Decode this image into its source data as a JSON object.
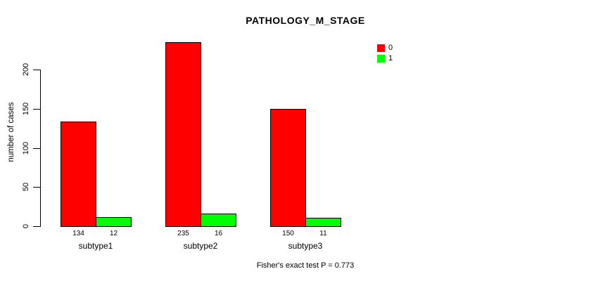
{
  "chart_data": {
    "type": "bar",
    "title": "PATHOLOGY_M_STAGE",
    "xlabel": "",
    "ylabel": "number of cases",
    "categories": [
      "subtype1",
      "subtype2",
      "subtype3"
    ],
    "series": [
      {
        "name": "0",
        "color": "#FF0000",
        "values": [
          134,
          235,
          150
        ]
      },
      {
        "name": "1",
        "color": "#00FF00",
        "values": [
          12,
          16,
          11
        ]
      }
    ],
    "bar_value_labels": [
      [
        134,
        12
      ],
      [
        235,
        16
      ],
      [
        150,
        11
      ]
    ],
    "ylim": [
      0,
      200
    ],
    "yticks": [
      0,
      50,
      100,
      150,
      200
    ],
    "grid": false,
    "legend_position": "top-right"
  },
  "caption": "Fisher's exact test P = 0.773",
  "colors": {
    "series_0": "#FF0000",
    "series_1": "#00FF00",
    "bar_border": "#000000",
    "text": "#000000",
    "background": "#FFFFFF"
  }
}
